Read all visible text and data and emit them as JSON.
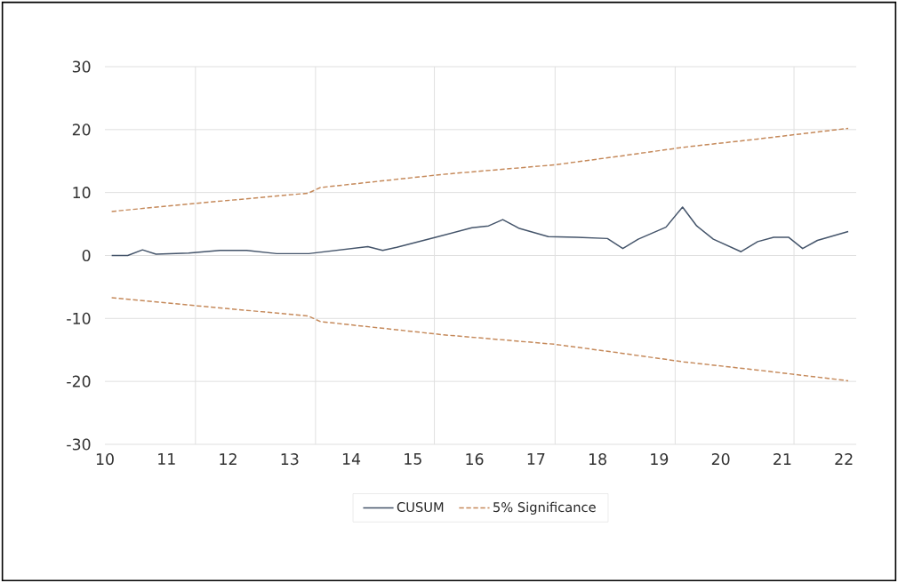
{
  "chart_data": {
    "type": "line",
    "xlim": [
      10,
      22.2
    ],
    "ylim": [
      -30,
      30
    ],
    "yticks": [
      -30,
      -20,
      -10,
      0,
      10,
      20,
      30
    ],
    "xticks": [
      10,
      11,
      12,
      13,
      14,
      15,
      16,
      17,
      18,
      19,
      20,
      21,
      22,
      {
        "value": 11.47,
        "label": null
      },
      {
        "value": 13.42,
        "label": null
      },
      {
        "value": 15.35,
        "label": null
      },
      {
        "value": 17.31,
        "label": null
      },
      {
        "value": 19.26,
        "label": null
      },
      {
        "value": 21.19,
        "label": null
      }
    ],
    "grid": true,
    "legend": "bottom",
    "line_style": "solid",
    "series": [
      {
        "name": "CUSUM",
        "color": "#44546a",
        "x": [
          10.11,
          10.37,
          10.61,
          10.83,
          11.36,
          11.87,
          12.3,
          12.79,
          13.31,
          14.27,
          14.51,
          14.74,
          15.37,
          15.96,
          16.23,
          16.46,
          16.73,
          17.2,
          17.66,
          18.16,
          18.41,
          18.66,
          19.11,
          19.38,
          19.61,
          19.88,
          20.33,
          20.6,
          20.86,
          21.1,
          21.33,
          21.57,
          22.07
        ],
        "values": [
          0,
          0,
          0.9,
          0.2,
          0.4,
          0.8,
          0.8,
          0.3,
          0.3,
          1.4,
          0.8,
          1.3,
          2.9,
          4.4,
          4.7,
          5.7,
          4.3,
          3.0,
          2.9,
          2.7,
          1.1,
          2.6,
          4.5,
          7.7,
          4.7,
          2.6,
          0.6,
          2.2,
          2.9,
          2.9,
          1.1,
          2.4,
          3.8
        ]
      },
      {
        "name": "5% Significance",
        "color": "#c5895a",
        "line_style": "dashed",
        "x": [
          10.11,
          11.5,
          13.3,
          13.5,
          15.5,
          17.3,
          18.3,
          19.4,
          20.6,
          22.07
        ],
        "values": [
          7.0,
          8.3,
          9.9,
          10.8,
          12.9,
          14.4,
          15.7,
          17.2,
          18.5,
          20.2
        ]
      },
      {
        "color": "#c5895a",
        "line_style": "dashed",
        "x": [
          10.11,
          11.5,
          13.3,
          13.5,
          15.5,
          17.3,
          18.3,
          19.4,
          20.6,
          22.07
        ],
        "values": [
          -6.7,
          -8.0,
          -9.6,
          -10.5,
          -12.6,
          -14.1,
          -15.4,
          -16.9,
          -18.2,
          -19.9
        ]
      }
    ]
  }
}
